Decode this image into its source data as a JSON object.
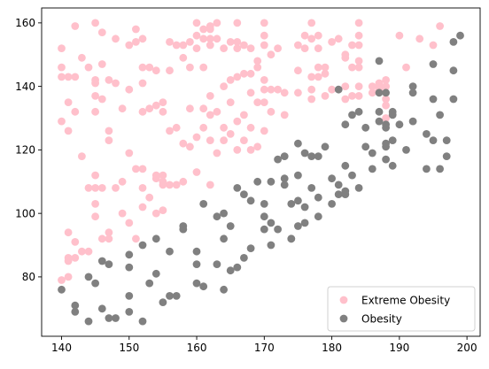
{
  "chart_data": {
    "type": "scatter",
    "title": "",
    "xlabel": "",
    "ylabel": "",
    "xlim": [
      137.05,
      201.95
    ],
    "ylim": [
      61.3,
      164.7
    ],
    "x_ticks": [
      140,
      150,
      160,
      170,
      180,
      190,
      200
    ],
    "y_ticks": [
      80,
      100,
      120,
      140,
      160
    ],
    "grid": false,
    "legend_position": "lower-right",
    "series": [
      {
        "name": "Extreme Obesity",
        "color": "#ffc0cb",
        "points": [
          [
            140,
            152
          ],
          [
            140,
            146
          ],
          [
            140,
            143
          ],
          [
            140,
            129
          ],
          [
            140,
            79
          ],
          [
            141,
            143
          ],
          [
            141,
            135
          ],
          [
            141,
            126
          ],
          [
            141,
            94
          ],
          [
            141,
            86
          ],
          [
            141,
            85
          ],
          [
            141,
            80
          ],
          [
            142,
            159
          ],
          [
            142,
            143
          ],
          [
            142,
            132
          ],
          [
            142,
            91
          ],
          [
            142,
            86
          ],
          [
            143,
            149
          ],
          [
            143,
            118
          ],
          [
            143,
            88
          ],
          [
            144,
            146
          ],
          [
            144,
            108
          ],
          [
            144,
            88
          ],
          [
            145,
            160
          ],
          [
            145,
            142
          ],
          [
            145,
            141
          ],
          [
            145,
            137
          ],
          [
            145,
            132
          ],
          [
            145,
            112
          ],
          [
            145,
            108
          ],
          [
            145,
            103
          ],
          [
            145,
            99
          ],
          [
            146,
            157
          ],
          [
            146,
            147
          ],
          [
            146,
            136
          ],
          [
            146,
            108
          ],
          [
            146,
            92
          ],
          [
            147,
            142
          ],
          [
            147,
            126
          ],
          [
            147,
            123
          ],
          [
            147,
            94
          ],
          [
            147,
            92
          ],
          [
            148,
            155
          ],
          [
            148,
            141
          ],
          [
            148,
            108
          ],
          [
            149,
            133
          ],
          [
            149,
            110
          ],
          [
            149,
            100
          ],
          [
            150,
            153
          ],
          [
            150,
            139
          ],
          [
            150,
            119
          ],
          [
            150,
            97
          ],
          [
            151,
            158
          ],
          [
            151,
            154
          ],
          [
            151,
            114
          ],
          [
            151,
            92
          ],
          [
            152,
            155
          ],
          [
            152,
            146
          ],
          [
            152,
            141
          ],
          [
            152,
            132
          ],
          [
            152,
            114
          ],
          [
            152,
            108
          ],
          [
            152,
            102
          ],
          [
            153,
            146
          ],
          [
            153,
            133
          ],
          [
            153,
            105
          ],
          [
            154,
            145
          ],
          [
            154,
            134
          ],
          [
            154,
            112
          ],
          [
            154,
            111
          ],
          [
            154,
            100
          ],
          [
            155,
            135
          ],
          [
            155,
            132
          ],
          [
            155,
            112
          ],
          [
            155,
            110
          ],
          [
            155,
            109
          ],
          [
            155,
            101
          ],
          [
            156,
            154
          ],
          [
            156,
            145
          ],
          [
            156,
            126
          ],
          [
            156,
            109
          ],
          [
            157,
            153
          ],
          [
            157,
            127
          ],
          [
            157,
            109
          ],
          [
            158,
            153
          ],
          [
            158,
            149
          ],
          [
            158,
            122
          ],
          [
            158,
            110
          ],
          [
            159,
            154
          ],
          [
            159,
            146
          ],
          [
            159,
            133
          ],
          [
            159,
            121
          ],
          [
            160,
            160
          ],
          [
            160,
            156
          ],
          [
            160,
            152
          ],
          [
            160,
            124
          ],
          [
            160,
            113
          ],
          [
            161,
            158
          ],
          [
            161,
            155
          ],
          [
            161,
            146
          ],
          [
            161,
            133
          ],
          [
            161,
            127
          ],
          [
            162,
            159
          ],
          [
            162,
            158
          ],
          [
            162,
            155
          ],
          [
            162,
            153
          ],
          [
            162,
            137
          ],
          [
            162,
            131
          ],
          [
            162,
            123
          ],
          [
            162,
            109
          ],
          [
            163,
            160
          ],
          [
            163,
            155
          ],
          [
            163,
            132
          ],
          [
            163,
            119
          ],
          [
            164,
            152
          ],
          [
            164,
            140
          ],
          [
            164,
            127
          ],
          [
            164,
            123
          ],
          [
            165,
            154
          ],
          [
            165,
            142
          ],
          [
            165,
            135
          ],
          [
            165,
            125
          ],
          [
            166,
            160
          ],
          [
            166,
            154
          ],
          [
            166,
            152
          ],
          [
            166,
            143
          ],
          [
            166,
            129
          ],
          [
            166,
            120
          ],
          [
            167,
            153
          ],
          [
            167,
            144
          ],
          [
            167,
            131
          ],
          [
            167,
            123
          ],
          [
            168,
            152
          ],
          [
            168,
            144
          ],
          [
            168,
            138
          ],
          [
            168,
            127
          ],
          [
            168,
            120
          ],
          [
            169,
            148
          ],
          [
            169,
            146
          ],
          [
            169,
            135
          ],
          [
            169,
            121
          ],
          [
            170,
            160
          ],
          [
            170,
            156
          ],
          [
            170,
            153
          ],
          [
            170,
            142
          ],
          [
            170,
            139
          ],
          [
            170,
            135
          ],
          [
            170,
            126
          ],
          [
            171,
            150
          ],
          [
            171,
            139
          ],
          [
            171,
            132
          ],
          [
            172,
            152
          ],
          [
            172,
            139
          ],
          [
            173,
            138
          ],
          [
            173,
            131
          ],
          [
            175,
            153
          ],
          [
            175,
            145
          ],
          [
            175,
            138
          ],
          [
            176,
            156
          ],
          [
            176,
            152
          ],
          [
            177,
            160
          ],
          [
            177,
            155
          ],
          [
            177,
            143
          ],
          [
            177,
            139
          ],
          [
            177,
            136
          ],
          [
            178,
            156
          ],
          [
            178,
            152
          ],
          [
            178,
            146
          ],
          [
            178,
            143
          ],
          [
            179,
            146
          ],
          [
            179,
            144
          ],
          [
            179,
            137
          ],
          [
            180,
            154
          ],
          [
            180,
            139
          ],
          [
            181,
            155
          ],
          [
            182,
            150
          ],
          [
            182,
            149
          ],
          [
            182,
            140
          ],
          [
            182,
            136
          ],
          [
            183,
            153
          ],
          [
            183,
            146
          ],
          [
            183,
            137
          ],
          [
            184,
            160
          ],
          [
            184,
            156
          ],
          [
            184,
            153
          ],
          [
            184,
            148
          ],
          [
            184,
            146
          ],
          [
            184,
            140
          ],
          [
            184,
            137
          ],
          [
            186,
            140
          ],
          [
            186,
            138
          ],
          [
            187,
            141
          ],
          [
            187,
            140
          ],
          [
            187,
            139
          ],
          [
            188,
            142
          ],
          [
            188,
            140
          ],
          [
            188,
            136
          ],
          [
            188,
            134
          ],
          [
            188,
            130
          ],
          [
            190,
            156
          ],
          [
            191,
            146
          ],
          [
            193,
            155
          ],
          [
            195,
            153
          ],
          [
            196,
            159
          ]
        ]
      },
      {
        "name": "Obesity",
        "color": "#808080",
        "points": [
          [
            140,
            76
          ],
          [
            142,
            71
          ],
          [
            142,
            69
          ],
          [
            144,
            80
          ],
          [
            144,
            66
          ],
          [
            145,
            78
          ],
          [
            146,
            85
          ],
          [
            146,
            70
          ],
          [
            147,
            84
          ],
          [
            147,
            67
          ],
          [
            148,
            67
          ],
          [
            150,
            87
          ],
          [
            150,
            83
          ],
          [
            150,
            74
          ],
          [
            150,
            69
          ],
          [
            152,
            90
          ],
          [
            152,
            66
          ],
          [
            153,
            78
          ],
          [
            154,
            92
          ],
          [
            154,
            81
          ],
          [
            155,
            72
          ],
          [
            156,
            88
          ],
          [
            156,
            74
          ],
          [
            157,
            74
          ],
          [
            158,
            96
          ],
          [
            158,
            95
          ],
          [
            160,
            88
          ],
          [
            160,
            84
          ],
          [
            160,
            78
          ],
          [
            161,
            103
          ],
          [
            161,
            77
          ],
          [
            163,
            99
          ],
          [
            163,
            84
          ],
          [
            164,
            100
          ],
          [
            164,
            92
          ],
          [
            164,
            76
          ],
          [
            165,
            96
          ],
          [
            165,
            82
          ],
          [
            166,
            108
          ],
          [
            166,
            83
          ],
          [
            167,
            106
          ],
          [
            167,
            86
          ],
          [
            168,
            104
          ],
          [
            168,
            89
          ],
          [
            169,
            110
          ],
          [
            170,
            103
          ],
          [
            170,
            99
          ],
          [
            170,
            95
          ],
          [
            171,
            110
          ],
          [
            171,
            97
          ],
          [
            171,
            90
          ],
          [
            172,
            117
          ],
          [
            172,
            95
          ],
          [
            173,
            118
          ],
          [
            173,
            111
          ],
          [
            173,
            109
          ],
          [
            174,
            103
          ],
          [
            174,
            92
          ],
          [
            174,
            92
          ],
          [
            175,
            122
          ],
          [
            175,
            112
          ],
          [
            175,
            104
          ],
          [
            175,
            96
          ],
          [
            176,
            119
          ],
          [
            176,
            102
          ],
          [
            176,
            97
          ],
          [
            177,
            118
          ],
          [
            177,
            108
          ],
          [
            178,
            118
          ],
          [
            178,
            105
          ],
          [
            178,
            99
          ],
          [
            179,
            121
          ],
          [
            180,
            111
          ],
          [
            180,
            103
          ],
          [
            181,
            139
          ],
          [
            181,
            109
          ],
          [
            181,
            106
          ],
          [
            182,
            128
          ],
          [
            182,
            115
          ],
          [
            182,
            107
          ],
          [
            182,
            106
          ],
          [
            183,
            131
          ],
          [
            183,
            112
          ],
          [
            184,
            132
          ],
          [
            184,
            108
          ],
          [
            185,
            127
          ],
          [
            185,
            121
          ],
          [
            186,
            119
          ],
          [
            186,
            114
          ],
          [
            187,
            148
          ],
          [
            187,
            138
          ],
          [
            187,
            132
          ],
          [
            187,
            129
          ],
          [
            188,
            138
          ],
          [
            188,
            128
          ],
          [
            188,
            127
          ],
          [
            188,
            122
          ],
          [
            188,
            121
          ],
          [
            188,
            117
          ],
          [
            189,
            132
          ],
          [
            189,
            131
          ],
          [
            189,
            123
          ],
          [
            189,
            115
          ],
          [
            190,
            128
          ],
          [
            191,
            120
          ],
          [
            192,
            140
          ],
          [
            192,
            138
          ],
          [
            192,
            129
          ],
          [
            194,
            125
          ],
          [
            194,
            114
          ],
          [
            195,
            147
          ],
          [
            195,
            136
          ],
          [
            195,
            123
          ],
          [
            196,
            131
          ],
          [
            196,
            114
          ],
          [
            197,
            123
          ],
          [
            197,
            118
          ],
          [
            198,
            154
          ],
          [
            198,
            145
          ],
          [
            198,
            136
          ],
          [
            199,
            156
          ]
        ]
      }
    ]
  }
}
